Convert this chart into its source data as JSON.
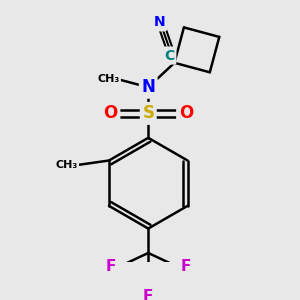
{
  "bg_color": "#e8e8e8",
  "atom_colors": {
    "C": "#008080",
    "N": "#0000ff",
    "O": "#ff0000",
    "S": "#ccaa00",
    "F": "#cc00cc",
    "default": "#000000"
  },
  "bond_color": "#000000",
  "bond_width": 1.8,
  "font_size_atom": 11,
  "font_size_small": 9
}
